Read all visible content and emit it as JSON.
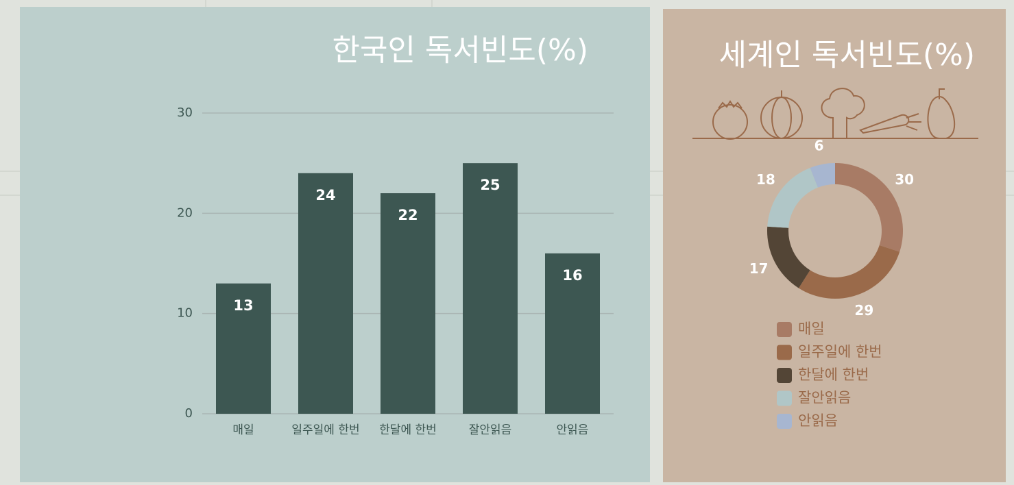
{
  "chart_data": [
    {
      "type": "bar",
      "title": "한국인 독서빈도(%)",
      "categories": [
        "매일",
        "일주일에 한번",
        "한달에 한번",
        "잘안읽음",
        "안읽음"
      ],
      "values": [
        13,
        24,
        22,
        25,
        16
      ],
      "color": "#3d5752",
      "ylim": [
        0,
        30
      ],
      "yticks": [
        0,
        10,
        20,
        30
      ],
      "grid": true
    },
    {
      "type": "donut",
      "title": "세계인 독서빈도(%)",
      "categories": [
        "매일",
        "일주일에 한번",
        "한달에 한번",
        "잘안읽음",
        "안읽음"
      ],
      "values": [
        30,
        29,
        17,
        18,
        6
      ],
      "colors": [
        "#a87b65",
        "#9a6a4a",
        "#534536",
        "#b0c6c7",
        "#a7b6d0"
      ]
    }
  ]
}
